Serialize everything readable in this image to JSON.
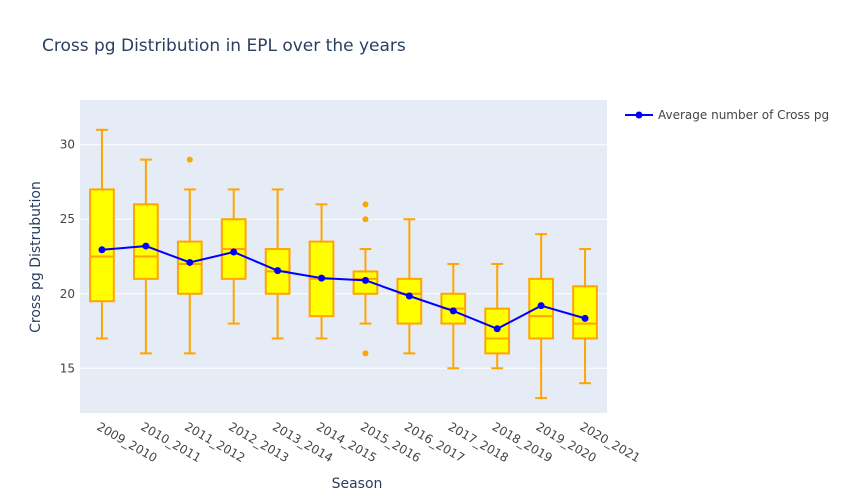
{
  "chart_data": {
    "type": "box",
    "title": "Cross pg Distribution in EPL over the years",
    "xlabel": "Season",
    "ylabel": "Cross pg Distrubution",
    "ylim": [
      12,
      33
    ],
    "yticks": [
      15,
      20,
      25,
      30
    ],
    "grid": true,
    "legend_position": "top-right",
    "colors": {
      "box_fill": "#ffff00",
      "box_line": "#ffa500",
      "line": "#0000ff",
      "plot_bg": "#e5ecf6"
    },
    "categories": [
      "2009_2010",
      "2010_2011",
      "2011_2012",
      "2012_2013",
      "2013_2014",
      "2014_2015",
      "2015_2016",
      "2016_2017",
      "2017_2018",
      "2018_2019",
      "2019_2020",
      "2020_2021"
    ],
    "boxes": [
      {
        "min": 17,
        "q1": 19.5,
        "median": 22.5,
        "q3": 27,
        "max": 31,
        "outliers": []
      },
      {
        "min": 16,
        "q1": 21,
        "median": 22.5,
        "q3": 26,
        "max": 29,
        "outliers": []
      },
      {
        "min": 16,
        "q1": 20,
        "median": 22,
        "q3": 23.5,
        "max": 27,
        "outliers": [
          29
        ]
      },
      {
        "min": 18,
        "q1": 21,
        "median": 23,
        "q3": 25,
        "max": 27,
        "outliers": []
      },
      {
        "min": 17,
        "q1": 20,
        "median": 21.5,
        "q3": 23,
        "max": 27,
        "outliers": []
      },
      {
        "min": 17,
        "q1": 18.5,
        "median": 21,
        "q3": 23.5,
        "max": 26,
        "outliers": []
      },
      {
        "min": 18,
        "q1": 20,
        "median": 21,
        "q3": 21.5,
        "max": 23,
        "outliers": [
          26,
          25,
          16
        ]
      },
      {
        "min": 16,
        "q1": 18,
        "median": 20,
        "q3": 21,
        "max": 25,
        "outliers": []
      },
      {
        "min": 15,
        "q1": 18,
        "median": 19,
        "q3": 20,
        "max": 22,
        "outliers": []
      },
      {
        "min": 15,
        "q1": 16,
        "median": 17,
        "q3": 19,
        "max": 22,
        "outliers": []
      },
      {
        "min": 13,
        "q1": 17,
        "median": 18.5,
        "q3": 21,
        "max": 24,
        "outliers": []
      },
      {
        "min": 14,
        "q1": 17,
        "median": 18,
        "q3": 20.5,
        "max": 23,
        "outliers": []
      }
    ],
    "series": [
      {
        "name": "Average number of Cross pg",
        "type": "line",
        "values": [
          22.95,
          23.2,
          22.1,
          22.8,
          21.55,
          21.05,
          20.9,
          19.85,
          18.85,
          17.65,
          19.2,
          18.35
        ]
      }
    ]
  }
}
